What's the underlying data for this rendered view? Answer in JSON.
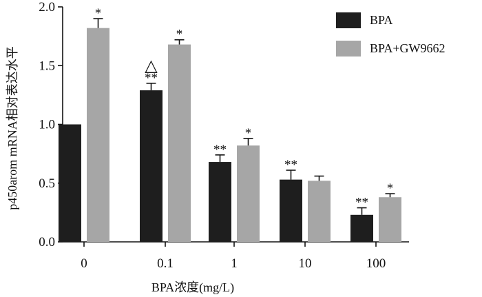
{
  "chart_data": {
    "type": "bar",
    "title": "",
    "xlabel": "BPA浓度(mg/L)",
    "ylabel": "p450arom mRNA相对表达水平",
    "categories": [
      "0",
      "0.1",
      "1",
      "10",
      "100"
    ],
    "ylim": [
      0,
      2.0
    ],
    "yticks": [
      "0.0",
      "0.5",
      "1.0",
      "1.5",
      "2.0"
    ],
    "ytick_values": [
      0,
      0.5,
      1.0,
      1.5,
      2.0
    ],
    "legend_position": "top-right",
    "series": [
      {
        "name": "BPA",
        "color": "#1e1e1e",
        "values": [
          1.0,
          1.29,
          0.68,
          0.53,
          0.23
        ],
        "errors": [
          0,
          0.06,
          0.06,
          0.08,
          0.06
        ],
        "annotations": [
          "",
          "**",
          "**",
          "**",
          "**"
        ]
      },
      {
        "name": "BPA+GW9662",
        "color": "#a6a6a6",
        "values": [
          1.82,
          1.68,
          0.82,
          0.52,
          0.38
        ],
        "errors": [
          0.08,
          0.04,
          0.06,
          0.04,
          0.03
        ],
        "annotations": [
          "*",
          "*",
          "*",
          "",
          "*"
        ]
      }
    ],
    "extra_marker": {
      "category": "0.1",
      "symbol": "△"
    }
  }
}
